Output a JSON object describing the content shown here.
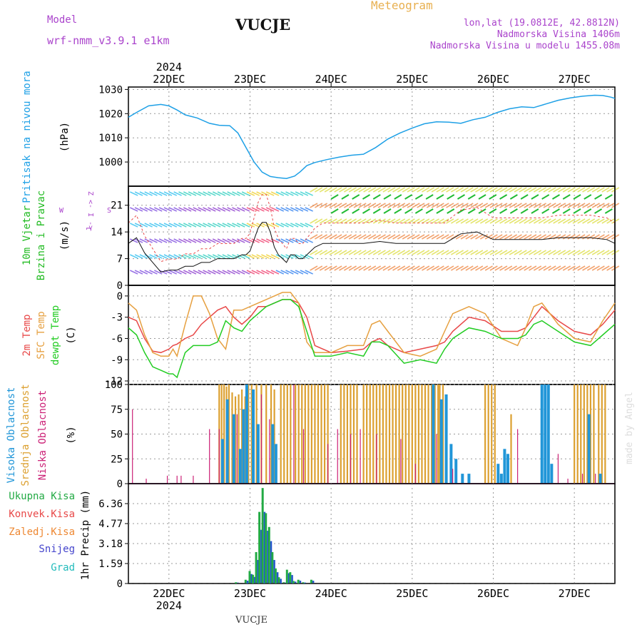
{
  "header": {
    "model_label": "Model",
    "model_name": "wrf-nmm_v3.9.1  e1km",
    "location": "VUCJE",
    "meteogram": "Meteogram",
    "lonlat": "lon,lat (19.0812E, 42.8812N)",
    "altitude": "Nadmorska Visina 1406m",
    "model_altitude": "Nadmorska Visina u modelu 1455.08m",
    "footer_location": "VUCJE",
    "watermark": "made by Angel"
  },
  "colors": {
    "pressure": "#1ea0e6",
    "temp2m": "#e84848",
    "sfc": "#e6a040",
    "dewpt": "#22cc22",
    "total_precip": "#22aa44",
    "high_cloud": "#2196d8",
    "mid_cloud": "#dca030",
    "low_cloud": "#cc2277",
    "wind_text": "#22bb22",
    "purple_text": "#aa44cc",
    "orange_text": "#e8b050"
  },
  "chart_data": [
    {
      "type": "line",
      "panel": "pressure",
      "ylabel_left": "Pritisak na nivou mora",
      "ylabel_unit": "(hPa)",
      "yticks": [
        1000,
        1010,
        1020,
        1030
      ],
      "ylim": [
        990,
        1031
      ],
      "x_axis": {
        "year_label": "2024",
        "days": [
          "22DEC",
          "23DEC",
          "24DEC",
          "25DEC",
          "26DEC",
          "27DEC"
        ],
        "range_days": [
          21.5,
          27.5
        ]
      },
      "series": [
        {
          "x": [
            21.5,
            21.6,
            21.75,
            21.9,
            22.0,
            22.1,
            22.2,
            22.35,
            22.5,
            22.62,
            22.75,
            22.85,
            22.95,
            23.05,
            23.15,
            23.25,
            23.35,
            23.45,
            23.55,
            23.62,
            23.7,
            23.8,
            23.95,
            24.1,
            24.25,
            24.4,
            24.55,
            24.7,
            24.85,
            25.0,
            25.15,
            25.3,
            25.45,
            25.6,
            25.75,
            25.9,
            26.05,
            26.2,
            26.35,
            26.5,
            26.65,
            26.8,
            26.95,
            27.1,
            27.25,
            27.35,
            27.45,
            27.5
          ],
          "values": [
            1018.5,
            1020.5,
            1023.2,
            1023.8,
            1023.2,
            1021.5,
            1019.5,
            1018.2,
            1016.0,
            1015.2,
            1015.0,
            1012.0,
            1006.0,
            1000.0,
            995.8,
            994.0,
            993.5,
            993.2,
            994.2,
            996.0,
            998.5,
            999.8,
            1001.0,
            1002.0,
            1002.8,
            1003.2,
            1006.0,
            1009.5,
            1012.0,
            1014.0,
            1015.8,
            1016.6,
            1016.5,
            1016.0,
            1017.5,
            1018.5,
            1020.5,
            1022.0,
            1022.8,
            1022.5,
            1024.0,
            1025.5,
            1026.5,
            1027.2,
            1027.6,
            1027.5,
            1026.8,
            1026.3
          ]
        }
      ]
    },
    {
      "type": "line",
      "panel": "wind",
      "ylabel_left": "10m Vjetar",
      "ylabel_left2": "Brzina i Pravac",
      "ylabel_unit": "(m/s)",
      "compass": [
        "Z",
        "<-",
        "I",
        "->",
        "W",
        "S",
        "J"
      ],
      "yticks": [
        0,
        7,
        14,
        21
      ],
      "ylim": [
        0,
        26
      ],
      "series": [
        {
          "name": "wind speed",
          "x": [
            21.5,
            21.6,
            21.7,
            21.8,
            21.9,
            22.0,
            22.1,
            22.2,
            22.3,
            22.4,
            22.5,
            22.6,
            22.7,
            22.8,
            22.9,
            22.95,
            23.0,
            23.05,
            23.1,
            23.15,
            23.2,
            23.25,
            23.3,
            23.35,
            23.4,
            23.45,
            23.5,
            23.55,
            23.6,
            23.65,
            23.7,
            23.8,
            23.9,
            24.0,
            24.2,
            24.4,
            24.6,
            24.8,
            25.0,
            25.2,
            25.4,
            25.6,
            25.8,
            26.0,
            26.2,
            26.4,
            26.6,
            26.8,
            27.0,
            27.2,
            27.4,
            27.5
          ],
          "values": [
            11.0,
            12.5,
            8.5,
            6.0,
            3.5,
            4.0,
            4.0,
            5.0,
            5.0,
            6.0,
            6.0,
            7.0,
            7.0,
            7.0,
            8.0,
            8.0,
            9.0,
            12.0,
            15.0,
            16.5,
            16.5,
            14.0,
            10.0,
            8.0,
            7.0,
            6.0,
            8.0,
            8.0,
            7.0,
            7.0,
            8.0,
            10.0,
            11.0,
            11.0,
            11.0,
            11.0,
            11.5,
            11.0,
            11.0,
            11.0,
            11.0,
            13.5,
            14.0,
            12.0,
            12.0,
            12.0,
            12.0,
            12.5,
            12.5,
            12.5,
            12.0,
            11.0
          ]
        }
      ]
    },
    {
      "type": "line",
      "panel": "temperature",
      "ylabel_left": "2m Temp",
      "ylabel_left2": "SFC Temp",
      "ylabel_left3": "dewpt Temp",
      "ylabel_unit": "(C)",
      "yticks": [
        -12,
        -9,
        -6,
        -3,
        0
      ],
      "ylim": [
        -12.5,
        1.5
      ],
      "series": [
        {
          "name": "2m Temp",
          "x": [
            21.5,
            21.6,
            21.7,
            21.8,
            21.9,
            22.0,
            22.05,
            22.1,
            22.2,
            22.3,
            22.4,
            22.5,
            22.6,
            22.7,
            22.8,
            22.9,
            23.0,
            23.1,
            23.2,
            23.3,
            23.4,
            23.5,
            23.6,
            23.7,
            23.8,
            24.0,
            24.2,
            24.4,
            24.5,
            24.6,
            24.7,
            24.9,
            25.1,
            25.3,
            25.4,
            25.5,
            25.7,
            25.9,
            26.1,
            26.3,
            26.4,
            26.5,
            26.6,
            26.8,
            27.0,
            27.2,
            27.35,
            27.5
          ],
          "values": [
            -3.0,
            -3.5,
            -6.0,
            -7.8,
            -8.0,
            -7.5,
            -7.0,
            -6.8,
            -6.0,
            -5.5,
            -4.0,
            -3.0,
            -2.0,
            -1.5,
            -3.0,
            -4.0,
            -3.0,
            -1.5,
            -1.5,
            -1.0,
            -0.5,
            -0.5,
            -1.0,
            -3.0,
            -7.0,
            -8.0,
            -7.8,
            -7.5,
            -6.5,
            -6.0,
            -7.0,
            -8.0,
            -7.5,
            -7.0,
            -6.5,
            -5.0,
            -3.0,
            -3.5,
            -5.0,
            -5.0,
            -4.5,
            -3.0,
            -1.5,
            -3.5,
            -5.0,
            -5.5,
            -4.0,
            -2.0
          ]
        },
        {
          "name": "SFC Temp",
          "x": [
            21.5,
            21.6,
            21.7,
            21.8,
            21.9,
            22.0,
            22.05,
            22.1,
            22.2,
            22.3,
            22.4,
            22.5,
            22.6,
            22.7,
            22.8,
            22.9,
            23.0,
            23.1,
            23.2,
            23.3,
            23.4,
            23.5,
            23.6,
            23.7,
            23.8,
            24.0,
            24.2,
            24.4,
            24.5,
            24.6,
            24.7,
            24.9,
            25.1,
            25.3,
            25.4,
            25.5,
            25.7,
            25.9,
            26.1,
            26.3,
            26.4,
            26.5,
            26.6,
            26.8,
            27.0,
            27.2,
            27.35,
            27.5
          ],
          "values": [
            -1.0,
            -2.0,
            -5.5,
            -8.0,
            -8.5,
            -8.5,
            -7.5,
            -8.5,
            -4.0,
            0.0,
            0.0,
            -2.5,
            -6.0,
            -7.5,
            -2.0,
            -2.0,
            -1.5,
            -1.0,
            -0.5,
            0.0,
            0.5,
            0.5,
            -1.0,
            -6.5,
            -8.0,
            -8.0,
            -7.0,
            -7.0,
            -4.0,
            -3.5,
            -5.0,
            -8.0,
            -8.5,
            -7.5,
            -5.0,
            -2.5,
            -1.5,
            -2.5,
            -6.0,
            -7.0,
            -4.5,
            -1.5,
            -1.0,
            -4.0,
            -6.0,
            -6.5,
            -3.5,
            -1.0
          ]
        },
        {
          "name": "dewpt Temp",
          "x": [
            21.5,
            21.6,
            21.7,
            21.8,
            21.9,
            22.0,
            22.05,
            22.1,
            22.2,
            22.3,
            22.4,
            22.5,
            22.6,
            22.7,
            22.8,
            22.9,
            23.0,
            23.1,
            23.2,
            23.3,
            23.4,
            23.5,
            23.6,
            23.7,
            23.8,
            24.0,
            24.2,
            24.4,
            24.5,
            24.6,
            24.7,
            24.9,
            25.1,
            25.3,
            25.4,
            25.5,
            25.7,
            25.9,
            26.1,
            26.3,
            26.4,
            26.5,
            26.6,
            26.8,
            27.0,
            27.2,
            27.35,
            27.5
          ],
          "values": [
            -4.5,
            -5.5,
            -8.0,
            -10.0,
            -10.5,
            -11.0,
            -11.0,
            -11.5,
            -8.0,
            -7.0,
            -7.0,
            -7.0,
            -6.5,
            -3.5,
            -4.5,
            -5.0,
            -3.5,
            -2.5,
            -1.5,
            -1.0,
            -0.5,
            -0.5,
            -1.5,
            -5.0,
            -8.5,
            -8.5,
            -8.0,
            -8.5,
            -6.5,
            -6.5,
            -7.0,
            -9.5,
            -9.0,
            -9.5,
            -7.5,
            -6.0,
            -4.5,
            -5.0,
            -6.0,
            -6.0,
            -5.5,
            -4.0,
            -3.5,
            -5.0,
            -6.5,
            -7.0,
            -5.5,
            -4.0
          ]
        }
      ]
    },
    {
      "type": "bar",
      "panel": "cloud",
      "ylabel_left": "Visoka Oblacnost",
      "ylabel_left2": "Srednja Oblacnost",
      "ylabel_left3": "Niska Oblacnost",
      "ylabel_unit": "(%)",
      "yticks": [
        0,
        25,
        50,
        75,
        100
      ],
      "ylim": [
        0,
        100
      ],
      "series": [
        {
          "name": "Srednja Oblacnost",
          "x": [
            22.62,
            22.65,
            22.68,
            22.71,
            22.74,
            22.78,
            22.82,
            22.86,
            22.9,
            22.94,
            22.98,
            23.02,
            23.08,
            23.14,
            23.2,
            23.26,
            23.3,
            23.38,
            23.42,
            23.46,
            23.5,
            23.56,
            23.6,
            23.64,
            23.68,
            23.72,
            23.76,
            23.8,
            23.84,
            23.88,
            23.92,
            23.96,
            24.12,
            24.16,
            24.2,
            24.24,
            24.28,
            24.32,
            24.4,
            24.44,
            24.48,
            24.52,
            24.56,
            24.6,
            24.64,
            24.68,
            24.72,
            24.76,
            24.8,
            24.84,
            24.88,
            24.92,
            24.96,
            25.0,
            25.04,
            25.08,
            25.12,
            25.16,
            25.2,
            25.24,
            25.28,
            25.32,
            25.34,
            25.38,
            25.9,
            25.94,
            25.98,
            26.02,
            26.22,
            27.0,
            27.04,
            27.08,
            27.12,
            27.16,
            27.2,
            27.24,
            27.3,
            27.34,
            27.38
          ],
          "values": [
            100,
            100,
            100,
            98,
            100,
            92,
            88,
            90,
            95,
            88,
            100,
            100,
            100,
            100,
            100,
            100,
            95,
            100,
            100,
            100,
            100,
            100,
            100,
            100,
            100,
            100,
            100,
            100,
            100,
            100,
            100,
            100,
            100,
            100,
            100,
            100,
            100,
            100,
            100,
            100,
            100,
            100,
            100,
            100,
            100,
            100,
            100,
            100,
            100,
            100,
            100,
            100,
            100,
            100,
            100,
            100,
            100,
            100,
            100,
            100,
            100,
            100,
            100,
            100,
            100,
            100,
            100,
            100,
            70,
            100,
            100,
            100,
            100,
            100,
            100,
            100,
            100,
            100,
            100
          ]
        },
        {
          "name": "Visoka Oblacnost",
          "x": [
            22.66,
            22.72,
            22.8,
            22.88,
            22.92,
            22.96,
            23.04,
            23.1,
            23.28,
            23.32,
            25.26,
            25.36,
            25.42,
            25.48,
            25.54,
            25.62,
            25.7,
            26.06,
            26.1,
            26.14,
            26.18,
            26.6,
            26.64,
            26.68,
            26.72,
            27.18,
            27.32
          ],
          "values": [
            45,
            85,
            70,
            35,
            75,
            100,
            95,
            60,
            60,
            40,
            100,
            85,
            90,
            40,
            25,
            10,
            10,
            20,
            10,
            35,
            30,
            100,
            100,
            100,
            20,
            70,
            10
          ]
        },
        {
          "name": "Niska Oblacnost",
          "x": [
            21.55,
            21.72,
            21.98,
            22.1,
            22.15,
            22.3,
            22.5,
            22.62,
            22.84,
            23.14,
            23.24,
            23.54,
            23.66,
            23.96,
            24.08,
            24.24,
            24.36,
            24.56,
            24.86,
            25.04,
            25.3,
            25.5,
            26.3,
            26.8,
            26.92,
            27.1,
            27.26
          ],
          "values": [
            75,
            5,
            8,
            8,
            8,
            8,
            55,
            55,
            70,
            90,
            65,
            100,
            55,
            40,
            55,
            50,
            55,
            50,
            45,
            20,
            50,
            15,
            55,
            30,
            5,
            10,
            10
          ]
        }
      ]
    },
    {
      "type": "bar",
      "panel": "precip",
      "legend": [
        "Ukupna Kisa",
        "Konvek.Kisa",
        "Zaledj.Kisa",
        "Snijeg",
        "Grad"
      ],
      "ylabel_unit": "1hr Precip (mm)",
      "yticks": [
        0,
        1.59,
        3.18,
        4.77,
        6.36
      ],
      "ylim": [
        0,
        7.95
      ],
      "series": [
        {
          "name": "Ukupna Kisa",
          "x": [
            22.83,
            22.95,
            23.0,
            23.04,
            23.08,
            23.12,
            23.16,
            23.2,
            23.24,
            23.28,
            23.32,
            23.36,
            23.42,
            23.46,
            23.5,
            23.54,
            23.6,
            23.66,
            23.76
          ],
          "values": [
            0.1,
            0.3,
            1.0,
            0.7,
            2.5,
            5.7,
            7.6,
            5.6,
            4.5,
            2.5,
            1.2,
            0.5,
            0.1,
            1.1,
            0.9,
            0.2,
            0.3,
            0.1,
            0.3
          ]
        }
      ]
    }
  ]
}
